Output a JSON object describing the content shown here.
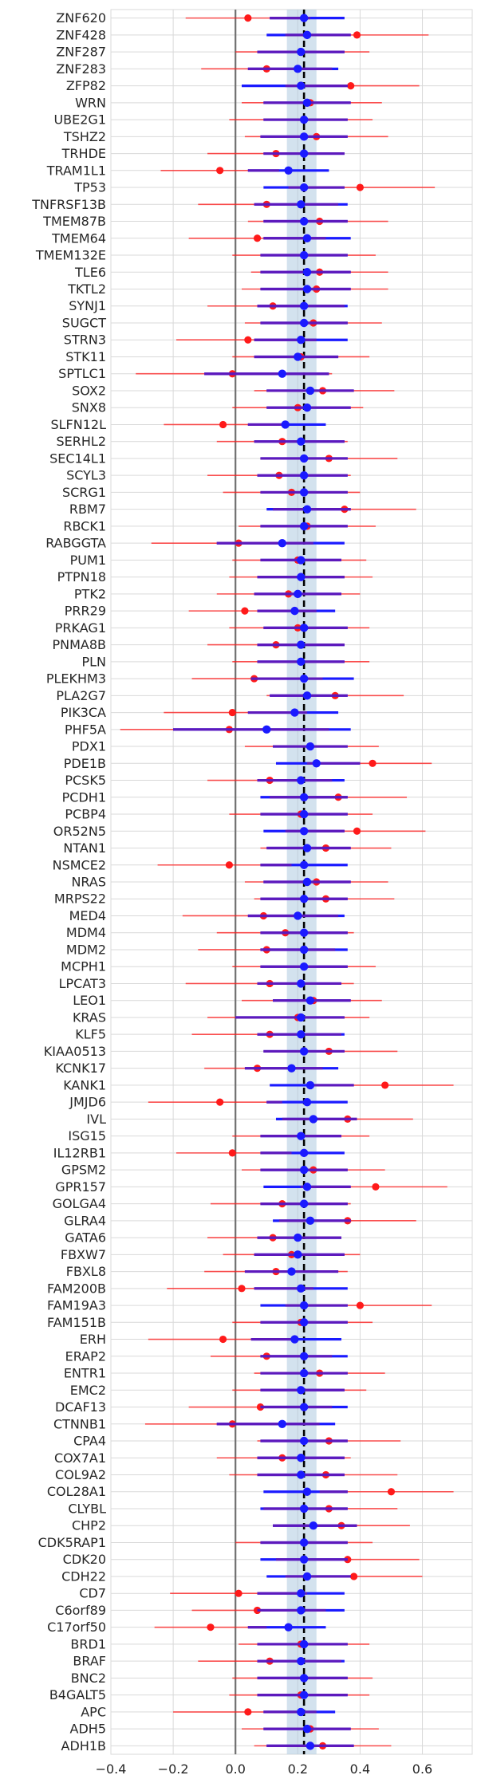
{
  "chart_data": {
    "type": "forest-plot",
    "title": "",
    "xlabel": "",
    "ylabel": "",
    "xlim": [
      -0.4,
      0.76
    ],
    "xticks": [
      -0.4,
      -0.2,
      0.0,
      0.2,
      0.4,
      0.6
    ],
    "xtick_labels": [
      "−0.4",
      "−0.2",
      "0.0",
      "0.2",
      "0.4",
      "0.6"
    ],
    "grid": true,
    "legend": "none",
    "reference_lines": {
      "zero_line": 0.0,
      "pooled_estimate": 0.22,
      "pooled_band": [
        0.165,
        0.26
      ]
    },
    "colors": {
      "background": "#ffffff",
      "grid": "#d9d9d9",
      "zero_line": "#707070",
      "pooled_line": "#000000",
      "pooled_band": "#aecbe0",
      "blue": "#1a1aff",
      "red": "#ff1a1a",
      "purple": "#6a1ab0"
    },
    "series": [
      {
        "name": "",
        "color": "#1a1aff",
        "style": "thick-interval"
      },
      {
        "name": "",
        "color": "#ff1a1a",
        "style": "thin-interval"
      }
    ],
    "categories": [
      "ZNF620",
      "ZNF428",
      "ZNF287",
      "ZNF283",
      "ZFP82",
      "WRN",
      "UBE2G1",
      "TSHZ2",
      "TRHDE",
      "TRAM1L1",
      "TP53",
      "TNFRSF13B",
      "TMEM87B",
      "TMEM64",
      "TMEM132E",
      "TLE6",
      "TKTL2",
      "SYNJ1",
      "SUGCT",
      "STRN3",
      "STK11",
      "SPTLC1",
      "SOX2",
      "SNX8",
      "SLFN12L",
      "SERHL2",
      "SEC14L1",
      "SCYL3",
      "SCRG1",
      "RBM7",
      "RBCK1",
      "RABGGTA",
      "PUM1",
      "PTPN18",
      "PTK2",
      "PRR29",
      "PRKAG1",
      "PNMA8B",
      "PLN",
      "PLEKHM3",
      "PLA2G7",
      "PIK3CA",
      "PHF5A",
      "PDX1",
      "PDE1B",
      "PCSK5",
      "PCDH1",
      "PCBP4",
      "OR52N5",
      "NTAN1",
      "NSMCE2",
      "NRAS",
      "MRPS22",
      "MED4",
      "MDM4",
      "MDM2",
      "MCPH1",
      "LPCAT3",
      "LEO1",
      "KRAS",
      "KLF5",
      "KIAA0513",
      "KCNK17",
      "KANK1",
      "JMJD6",
      "IVL",
      "ISG15",
      "IL12RB1",
      "GPSM2",
      "GPR157",
      "GOLGA4",
      "GLRA4",
      "GATA6",
      "FBXW7",
      "FBXL8",
      "FAM200B",
      "FAM19A3",
      "FAM151B",
      "ERH",
      "ERAP2",
      "ENTR1",
      "EMC2",
      "DCAF13",
      "CTNNB1",
      "CPA4",
      "COX7A1",
      "COL9A2",
      "COL28A1",
      "CLYBL",
      "CHP2",
      "CDK5RAP1",
      "CDK20",
      "CDH22",
      "CD7",
      "C6orf89",
      "C17orf50",
      "BRD1",
      "BRAF",
      "BNC2",
      "B4GALT5",
      "APC",
      "ADH5",
      "ADH1B"
    ],
    "blue_est": [
      0.22,
      0.23,
      0.21,
      0.2,
      0.21,
      0.23,
      0.22,
      0.22,
      0.22,
      0.17,
      0.22,
      0.21,
      0.22,
      0.23,
      0.22,
      0.23,
      0.23,
      0.22,
      0.22,
      0.21,
      0.2,
      0.15,
      0.24,
      0.23,
      0.16,
      0.21,
      0.22,
      0.22,
      0.22,
      0.23,
      0.22,
      0.15,
      0.21,
      0.21,
      0.2,
      0.19,
      0.22,
      0.21,
      0.21,
      0.22,
      0.23,
      0.19,
      0.1,
      0.24,
      0.26,
      0.21,
      0.22,
      0.22,
      0.22,
      0.23,
      0.22,
      0.23,
      0.22,
      0.2,
      0.22,
      0.22,
      0.22,
      0.21,
      0.24,
      0.21,
      0.21,
      0.22,
      0.18,
      0.24,
      0.23,
      0.25,
      0.21,
      0.22,
      0.22,
      0.23,
      0.22,
      0.24,
      0.2,
      0.2,
      0.18,
      0.21,
      0.22,
      0.22,
      0.19,
      0.22,
      0.22,
      0.21,
      0.22,
      0.15,
      0.22,
      0.21,
      0.21,
      0.23,
      0.22,
      0.25,
      0.22,
      0.22,
      0.23,
      0.21,
      0.21,
      0.17,
      0.22,
      0.21,
      0.22,
      0.22,
      0.21,
      0.23,
      0.24
    ],
    "blue_lo": [
      0.11,
      0.1,
      0.07,
      0.04,
      0.02,
      0.09,
      0.09,
      0.08,
      0.09,
      0.04,
      0.09,
      0.06,
      0.09,
      0.09,
      0.08,
      0.08,
      0.08,
      0.07,
      0.08,
      0.06,
      0.06,
      -0.1,
      0.1,
      0.1,
      0.04,
      0.06,
      0.08,
      0.07,
      0.08,
      0.1,
      0.08,
      -0.06,
      0.08,
      0.07,
      0.06,
      0.07,
      0.09,
      0.07,
      0.07,
      0.05,
      0.11,
      0.04,
      -0.2,
      0.12,
      0.13,
      0.07,
      0.08,
      0.08,
      0.09,
      0.1,
      0.08,
      0.09,
      0.08,
      0.04,
      0.08,
      0.08,
      0.08,
      0.07,
      0.12,
      0.0,
      0.07,
      0.09,
      0.03,
      0.11,
      0.1,
      0.13,
      0.08,
      0.08,
      0.08,
      0.09,
      0.08,
      0.12,
      0.07,
      0.06,
      0.03,
      0.06,
      0.08,
      0.08,
      0.05,
      0.08,
      0.08,
      0.08,
      0.08,
      -0.06,
      0.08,
      0.07,
      0.07,
      0.09,
      0.08,
      0.12,
      0.08,
      0.08,
      0.1,
      0.07,
      0.07,
      0.04,
      0.07,
      0.07,
      0.07,
      0.07,
      0.09,
      0.09,
      0.1
    ],
    "blue_hi": [
      0.35,
      0.37,
      0.35,
      0.33,
      0.36,
      0.37,
      0.36,
      0.36,
      0.35,
      0.3,
      0.35,
      0.36,
      0.36,
      0.37,
      0.36,
      0.37,
      0.37,
      0.36,
      0.36,
      0.36,
      0.33,
      0.3,
      0.38,
      0.37,
      0.29,
      0.35,
      0.36,
      0.36,
      0.36,
      0.37,
      0.36,
      0.35,
      0.34,
      0.35,
      0.34,
      0.32,
      0.36,
      0.35,
      0.35,
      0.38,
      0.36,
      0.33,
      0.37,
      0.36,
      0.4,
      0.35,
      0.36,
      0.36,
      0.35,
      0.37,
      0.36,
      0.37,
      0.36,
      0.35,
      0.36,
      0.36,
      0.36,
      0.34,
      0.37,
      0.35,
      0.35,
      0.35,
      0.33,
      0.38,
      0.36,
      0.39,
      0.34,
      0.35,
      0.36,
      0.37,
      0.36,
      0.37,
      0.34,
      0.35,
      0.33,
      0.36,
      0.36,
      0.36,
      0.34,
      0.36,
      0.36,
      0.35,
      0.36,
      0.32,
      0.36,
      0.35,
      0.35,
      0.36,
      0.36,
      0.39,
      0.36,
      0.36,
      0.37,
      0.35,
      0.35,
      0.29,
      0.36,
      0.35,
      0.36,
      0.36,
      0.32,
      0.37,
      0.38
    ],
    "red_est": [
      0.04,
      0.39,
      0.21,
      0.1,
      0.37,
      0.24,
      0.22,
      0.26,
      0.13,
      -0.05,
      0.4,
      0.1,
      0.27,
      0.07,
      0.22,
      0.27,
      0.26,
      0.12,
      0.25,
      0.04,
      0.21,
      -0.01,
      0.28,
      0.2,
      -0.04,
      0.15,
      0.3,
      0.14,
      0.18,
      0.35,
      0.23,
      0.01,
      0.2,
      0.21,
      0.17,
      0.03,
      0.2,
      0.13,
      0.21,
      0.06,
      0.32,
      -0.01,
      -0.02,
      0.24,
      0.44,
      0.11,
      0.33,
      0.21,
      0.39,
      0.29,
      -0.02,
      0.26,
      0.29,
      0.09,
      0.16,
      0.1,
      0.22,
      0.11,
      0.25,
      0.2,
      0.11,
      0.3,
      0.07,
      0.48,
      -0.05,
      0.36,
      0.21,
      -0.01,
      0.25,
      0.45,
      0.15,
      0.36,
      0.12,
      0.18,
      0.13,
      0.02,
      0.4,
      0.21,
      -0.04,
      0.1,
      0.27,
      0.21,
      0.08,
      -0.01,
      0.3,
      0.15,
      0.29,
      0.5,
      0.3,
      0.34,
      0.22,
      0.36,
      0.38,
      0.01,
      0.07,
      -0.08,
      0.21,
      0.11,
      0.22,
      0.21,
      0.04,
      0.24,
      0.28
    ],
    "red_lo": [
      -0.16,
      0.16,
      0.0,
      -0.11,
      0.16,
      0.02,
      -0.02,
      0.03,
      -0.09,
      -0.24,
      0.17,
      -0.12,
      0.04,
      -0.15,
      -0.01,
      0.05,
      0.02,
      -0.09,
      0.03,
      -0.19,
      -0.01,
      -0.32,
      0.06,
      -0.01,
      -0.23,
      -0.06,
      0.08,
      -0.09,
      -0.04,
      0.12,
      0.01,
      -0.27,
      -0.01,
      -0.02,
      -0.06,
      -0.15,
      -0.02,
      -0.09,
      -0.01,
      -0.14,
      0.1,
      -0.23,
      -0.37,
      0.03,
      0.23,
      -0.09,
      0.11,
      -0.02,
      0.16,
      0.08,
      -0.25,
      0.03,
      0.06,
      -0.17,
      -0.06,
      -0.12,
      -0.01,
      -0.16,
      0.02,
      -0.09,
      -0.14,
      0.09,
      -0.1,
      0.25,
      -0.28,
      0.15,
      -0.01,
      -0.19,
      0.02,
      0.21,
      -0.08,
      0.14,
      -0.09,
      -0.04,
      -0.1,
      -0.22,
      0.16,
      -0.01,
      -0.28,
      -0.08,
      0.06,
      -0.01,
      -0.15,
      -0.29,
      0.07,
      -0.06,
      -0.02,
      0.27,
      0.09,
      0.12,
      0.0,
      0.13,
      0.16,
      -0.21,
      -0.14,
      -0.26,
      0.01,
      -0.12,
      -0.01,
      -0.02,
      -0.2,
      0.02,
      0.06
    ],
    "red_hi": [
      0.24,
      0.62,
      0.43,
      0.31,
      0.59,
      0.47,
      0.44,
      0.49,
      0.35,
      0.14,
      0.64,
      0.33,
      0.49,
      0.29,
      0.45,
      0.49,
      0.49,
      0.35,
      0.47,
      0.26,
      0.43,
      0.31,
      0.51,
      0.41,
      0.16,
      0.36,
      0.52,
      0.37,
      0.4,
      0.58,
      0.45,
      0.25,
      0.42,
      0.44,
      0.4,
      0.26,
      0.43,
      0.35,
      0.43,
      0.28,
      0.54,
      0.23,
      0.3,
      0.46,
      0.63,
      0.31,
      0.55,
      0.44,
      0.61,
      0.5,
      0.18,
      0.49,
      0.51,
      0.33,
      0.38,
      0.32,
      0.45,
      0.38,
      0.47,
      0.43,
      0.34,
      0.52,
      0.28,
      0.7,
      0.15,
      0.57,
      0.43,
      0.18,
      0.48,
      0.68,
      0.37,
      0.58,
      0.34,
      0.4,
      0.36,
      0.25,
      0.63,
      0.44,
      0.18,
      0.31,
      0.48,
      0.42,
      0.31,
      0.27,
      0.53,
      0.37,
      0.52,
      0.7,
      0.52,
      0.56,
      0.44,
      0.59,
      0.6,
      0.23,
      0.29,
      0.1,
      0.43,
      0.34,
      0.44,
      0.43,
      0.26,
      0.46,
      0.5
    ]
  }
}
